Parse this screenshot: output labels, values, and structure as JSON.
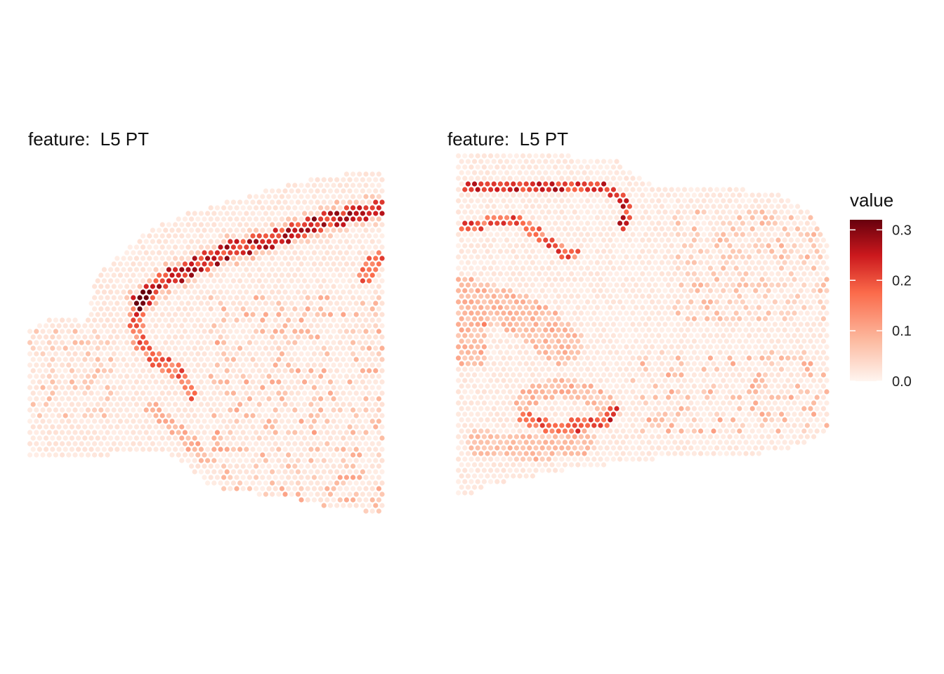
{
  "chart_data": [
    {
      "type": "spatial-scatter",
      "title": "feature:  L5 PT",
      "color_scale": {
        "name": "value",
        "range": [
          0.0,
          0.32
        ],
        "low": "#fff5f0",
        "mid": "#fb6a4a",
        "high": "#67000d"
      },
      "series": [
        {
          "value_range_shown": [
            0.0,
            0.3
          ]
        }
      ]
    },
    {
      "type": "spatial-scatter",
      "title": "feature:  L5 PT",
      "color_scale": {
        "name": "value",
        "range": [
          0.0,
          0.32
        ],
        "low": "#fff5f0",
        "mid": "#fb6a4a",
        "high": "#67000d"
      },
      "series": [
        {
          "value_range_shown": [
            0.0,
            0.3
          ]
        }
      ]
    }
  ],
  "legend": {
    "title": "value",
    "ticks": [
      "0.0",
      "0.1",
      "0.2",
      "0.3"
    ],
    "tick_values": [
      0.0,
      0.1,
      0.2,
      0.3
    ],
    "max": 0.32,
    "colors": [
      "#fff5f0",
      "#fcbba1",
      "#fb6a4a",
      "#cb181d",
      "#67000d"
    ]
  }
}
